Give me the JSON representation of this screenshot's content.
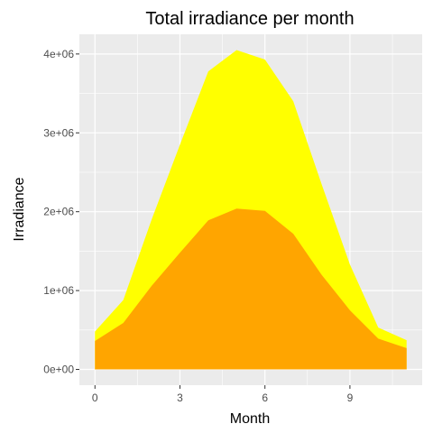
{
  "chart_data": {
    "type": "area",
    "title": "Total irradiance per month",
    "xlabel": "Month",
    "ylabel": "Irradiance",
    "x": [
      0,
      1,
      2,
      3,
      4,
      5,
      6,
      7,
      8,
      9,
      10,
      11
    ],
    "xlim": [
      -0.55,
      11.55
    ],
    "ylim": [
      -200000,
      4250000
    ],
    "x_ticks": [
      0,
      3,
      6,
      9
    ],
    "x_tick_labels": [
      "0",
      "3",
      "6",
      "9"
    ],
    "y_ticks": [
      0,
      1000000,
      2000000,
      3000000,
      4000000
    ],
    "y_tick_labels": [
      "0e+00",
      "1e+06",
      "2e+06",
      "3e+06",
      "4e+06"
    ],
    "grid": true,
    "legend": "none",
    "series": [
      {
        "values": [
          480000,
          880000,
          1900000,
          2850000,
          3780000,
          4050000,
          3930000,
          3400000,
          2350000,
          1330000,
          530000,
          370000
        ],
        "color": "#FFFF00"
      },
      {
        "values": [
          360000,
          590000,
          1060000,
          1480000,
          1890000,
          2040000,
          2010000,
          1720000,
          1200000,
          750000,
          390000,
          270000
        ],
        "color": "#FFA500"
      }
    ],
    "panel_background": "#EBEBEB",
    "grid_color": "#FFFFFF"
  }
}
